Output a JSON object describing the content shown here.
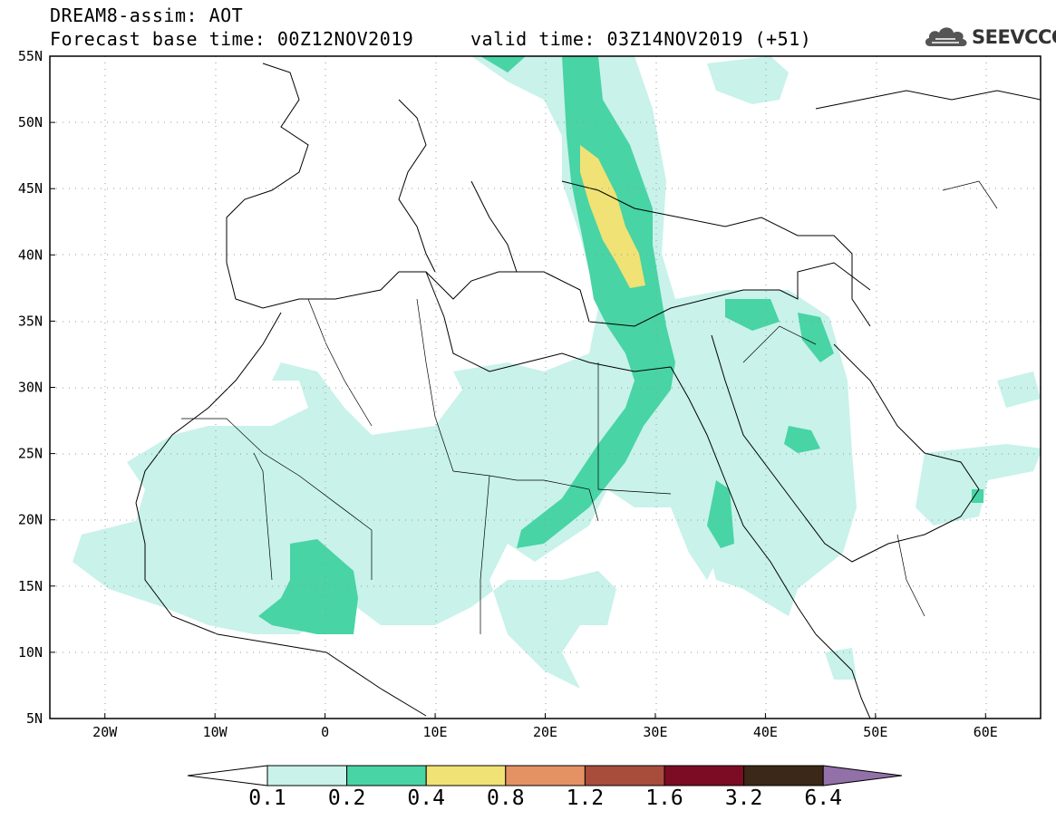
{
  "title": {
    "line1": "DREAM8-assim: AOT",
    "line2": "Forecast base time: 00Z12NOV2019     valid time: 03Z14NOV2019 (+51)"
  },
  "logo": {
    "text": "SEEVCCC",
    "icon": "cloud-icon"
  },
  "axes": {
    "lon_ticks": [
      "20W",
      "10W",
      "0",
      "10E",
      "20E",
      "30E",
      "40E",
      "50E",
      "60E"
    ],
    "lat_ticks": [
      "55N",
      "50N",
      "45N",
      "40N",
      "35N",
      "30N",
      "25N",
      "20N",
      "15N",
      "10N",
      "5N"
    ],
    "lon_range": [
      -25,
      65
    ],
    "lat_range": [
      5,
      55
    ],
    "grid": "dotted"
  },
  "colorbar": {
    "levels": [
      "0.1",
      "0.2",
      "0.4",
      "0.8",
      "1.2",
      "1.6",
      "3.2",
      "6.4"
    ],
    "colors": [
      "#c8f2ea",
      "#48d4a4",
      "#f0e274",
      "#e49264",
      "#a84c3c",
      "#7c0c24",
      "#3c2818",
      "#9270a8"
    ],
    "under_color": "#ffffff"
  },
  "fields": {
    "light": "#c8f2ea",
    "medium": "#48d4a4",
    "high": "#f0e274"
  }
}
